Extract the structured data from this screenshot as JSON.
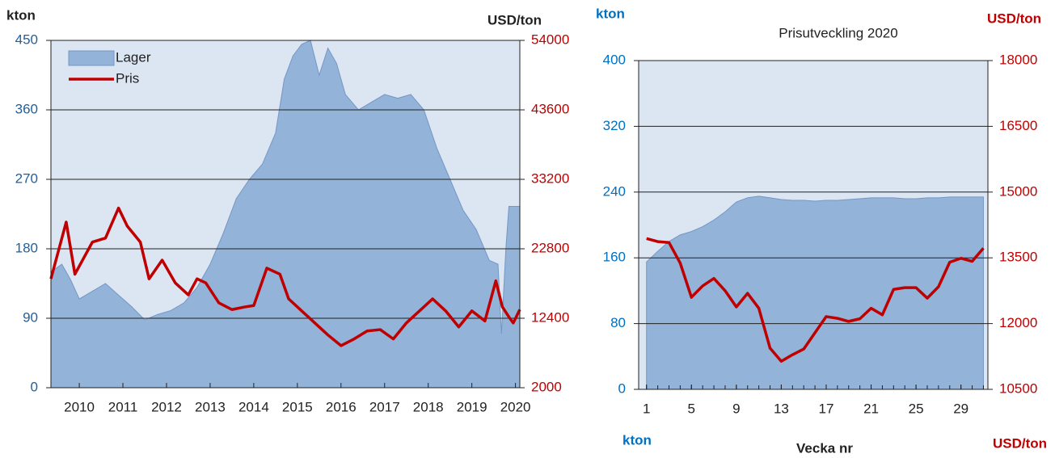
{
  "chart_data": [
    {
      "type": "area-line",
      "y_label": "kton",
      "y2_label": "USD/ton",
      "legend": "top-left",
      "grid": true,
      "xlim": [
        2009.35,
        2020.1
      ],
      "xticks": [
        2010,
        2011,
        2012,
        2013,
        2014,
        2015,
        2016,
        2017,
        2018,
        2019,
        2020
      ],
      "ylim": [
        0,
        450
      ],
      "yticks": [
        0,
        90,
        180,
        270,
        360,
        450
      ],
      "y2lim": [
        2000,
        54000
      ],
      "y2ticks": [
        2000,
        12400,
        22800,
        33200,
        43600,
        54000
      ],
      "series": [
        {
          "name": "Lager",
          "type": "area",
          "color": "#93b3d8",
          "x": [
            2009.35,
            2009.6,
            2009.8,
            2010.0,
            2010.3,
            2010.6,
            2010.9,
            2011.2,
            2011.5,
            2011.8,
            2012.1,
            2012.4,
            2012.7,
            2013.0,
            2013.3,
            2013.6,
            2013.9,
            2014.2,
            2014.5,
            2014.7,
            2014.9,
            2015.1,
            2015.3,
            2015.5,
            2015.7,
            2015.9,
            2016.1,
            2016.4,
            2016.7,
            2017.0,
            2017.3,
            2017.6,
            2017.9,
            2018.2,
            2018.5,
            2018.8,
            2019.1,
            2019.4,
            2019.6,
            2019.68,
            2019.78,
            2019.85,
            2020.1
          ],
          "values": [
            150,
            160,
            140,
            115,
            125,
            135,
            120,
            105,
            88,
            95,
            100,
            110,
            130,
            160,
            200,
            245,
            270,
            290,
            330,
            400,
            430,
            445,
            450,
            405,
            440,
            420,
            380,
            360,
            370,
            380,
            375,
            380,
            360,
            310,
            270,
            230,
            205,
            165,
            160,
            70,
            180,
            235,
            235
          ]
        },
        {
          "name": "Pris",
          "type": "line",
          "axis": "y2",
          "color": "#c00000",
          "x": [
            2009.35,
            2009.7,
            2009.9,
            2010.3,
            2010.6,
            2010.9,
            2011.1,
            2011.4,
            2011.6,
            2011.9,
            2012.2,
            2012.5,
            2012.7,
            2012.9,
            2013.2,
            2013.5,
            2013.8,
            2014.0,
            2014.3,
            2014.6,
            2014.8,
            2015.1,
            2015.4,
            2015.7,
            2016.0,
            2016.3,
            2016.6,
            2016.9,
            2017.2,
            2017.5,
            2017.8,
            2018.1,
            2018.4,
            2018.7,
            2019.0,
            2019.3,
            2019.55,
            2019.7,
            2019.85,
            2019.95,
            2020.1
          ],
          "values": [
            18300,
            26800,
            19000,
            23800,
            24400,
            28900,
            26200,
            23800,
            18300,
            21100,
            17700,
            15900,
            18300,
            17700,
            14700,
            13700,
            14100,
            14300,
            19900,
            19000,
            15300,
            13500,
            11700,
            9900,
            8300,
            9300,
            10500,
            10700,
            9300,
            11700,
            13500,
            15300,
            13500,
            11100,
            13500,
            12000,
            18000,
            14100,
            12600,
            11700,
            13700
          ]
        }
      ]
    },
    {
      "type": "area-line",
      "title": "Prisutveckling 2020",
      "y_label": "kton",
      "y2_label": "USD/ton",
      "x_label": "Vecka nr",
      "y_label_bottom": "kton",
      "y2_label_bottom": "USD/ton",
      "grid": true,
      "xlim": [
        0.3,
        31.4
      ],
      "xticks": [
        1,
        5,
        9,
        13,
        17,
        21,
        25,
        29
      ],
      "ylim": [
        0,
        400
      ],
      "yticks": [
        0,
        80,
        160,
        240,
        320,
        400
      ],
      "y2lim": [
        10500,
        18000
      ],
      "y2ticks": [
        10500,
        12000,
        13500,
        15000,
        16500,
        18000
      ],
      "series": [
        {
          "name": "Lager",
          "type": "area",
          "color": "#93b3d8",
          "x": [
            1,
            2,
            3,
            4,
            5,
            6,
            7,
            8,
            9,
            10,
            11,
            12,
            13,
            14,
            15,
            16,
            17,
            18,
            19,
            20,
            21,
            22,
            23,
            24,
            25,
            26,
            27,
            28,
            29,
            30,
            31
          ],
          "values": [
            155,
            168,
            180,
            188,
            192,
            198,
            206,
            216,
            228,
            233,
            235,
            233,
            231,
            230,
            230,
            229,
            230,
            230,
            231,
            232,
            233,
            233,
            233,
            232,
            232,
            233,
            233,
            234,
            234,
            234,
            234
          ]
        },
        {
          "name": "Pris",
          "type": "line",
          "axis": "y2",
          "color": "#c00000",
          "x": [
            1,
            2,
            3,
            4,
            5,
            6,
            7,
            8,
            9,
            10,
            11,
            12,
            13,
            14,
            15,
            16,
            17,
            18,
            19,
            20,
            21,
            22,
            23,
            24,
            25,
            26,
            27,
            28,
            29,
            30,
            31
          ],
          "values": [
            13940,
            13870,
            13850,
            13380,
            12600,
            12860,
            13030,
            12750,
            12380,
            12690,
            12350,
            11440,
            11140,
            11290,
            11420,
            11790,
            12160,
            12120,
            12050,
            12110,
            12350,
            12200,
            12780,
            12820,
            12820,
            12580,
            12840,
            13400,
            13490,
            13420,
            13720
          ]
        }
      ]
    }
  ]
}
